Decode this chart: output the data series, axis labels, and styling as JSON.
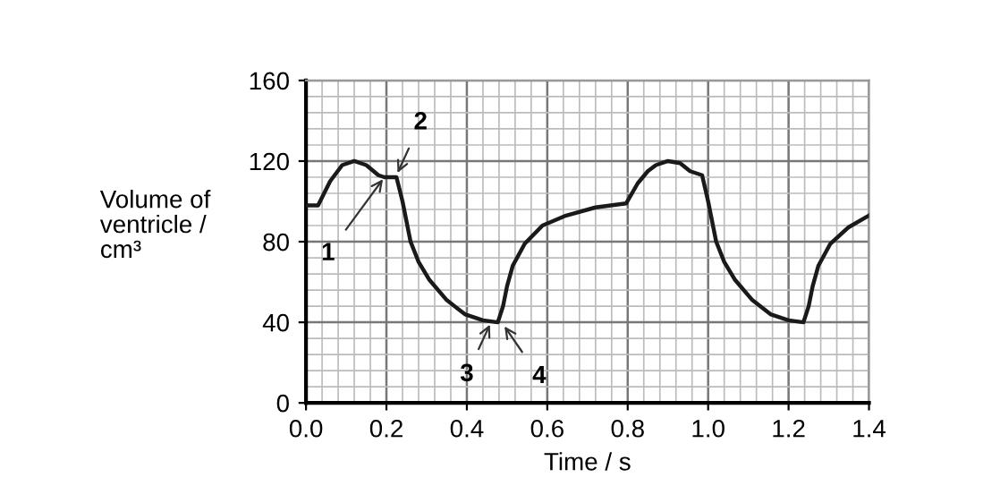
{
  "chart_data": {
    "type": "line",
    "xlabel": "Time / s",
    "ylabel": "Volume of\nventricle /\ncm³",
    "x": [
      0,
      0.03,
      0.06,
      0.09,
      0.12,
      0.15,
      0.18,
      0.195,
      0.225,
      0.24,
      0.26,
      0.28,
      0.307,
      0.35,
      0.395,
      0.44,
      0.477,
      0.49,
      0.5,
      0.514,
      0.544,
      0.588,
      0.647,
      0.72,
      0.796,
      0.825,
      0.85,
      0.87,
      0.9,
      0.93,
      0.955,
      0.985,
      1.0,
      1.02,
      1.04,
      1.067,
      1.11,
      1.155,
      1.2,
      1.237,
      1.25,
      1.26,
      1.274,
      1.304,
      1.348,
      1.4
    ],
    "series": [
      {
        "color": "#1a1a1a",
        "values": [
          98,
          98,
          110,
          118,
          120,
          118,
          113,
          112,
          112,
          100,
          80,
          70,
          61,
          51,
          44,
          41,
          40,
          48,
          58,
          68,
          79,
          88,
          93,
          97,
          99,
          109,
          115,
          118,
          120,
          119,
          115,
          113,
          100,
          80,
          70,
          61,
          51,
          44,
          41,
          40,
          48,
          58,
          68,
          79,
          87,
          93
        ]
      }
    ],
    "xlim": [
      0,
      1.4
    ],
    "ylim": [
      0,
      160
    ],
    "xticks": [
      {
        "value": 0,
        "label": "0.0"
      },
      {
        "value": 0.2,
        "label": "0.2"
      },
      {
        "value": 0.4,
        "label": "0.4"
      },
      {
        "value": 0.6,
        "label": "0.6"
      },
      {
        "value": 0.8,
        "label": "0.8"
      },
      {
        "value": 1.0,
        "label": "1.0"
      },
      {
        "value": 1.2,
        "label": "1.2"
      },
      {
        "value": 1.4,
        "label": "1.4"
      }
    ],
    "yticks": [
      0,
      40,
      80,
      120,
      160
    ],
    "grid": true,
    "marker": "none",
    "line_style": "solid",
    "legend": false,
    "annotations": [
      {
        "text": "1",
        "x": 0.195,
        "y": 112
      },
      {
        "text": "2",
        "x": 0.225,
        "y": 113
      },
      {
        "text": "3",
        "x": 0.46,
        "y": 40
      },
      {
        "text": "4",
        "x": 0.49,
        "y": 39
      }
    ]
  }
}
